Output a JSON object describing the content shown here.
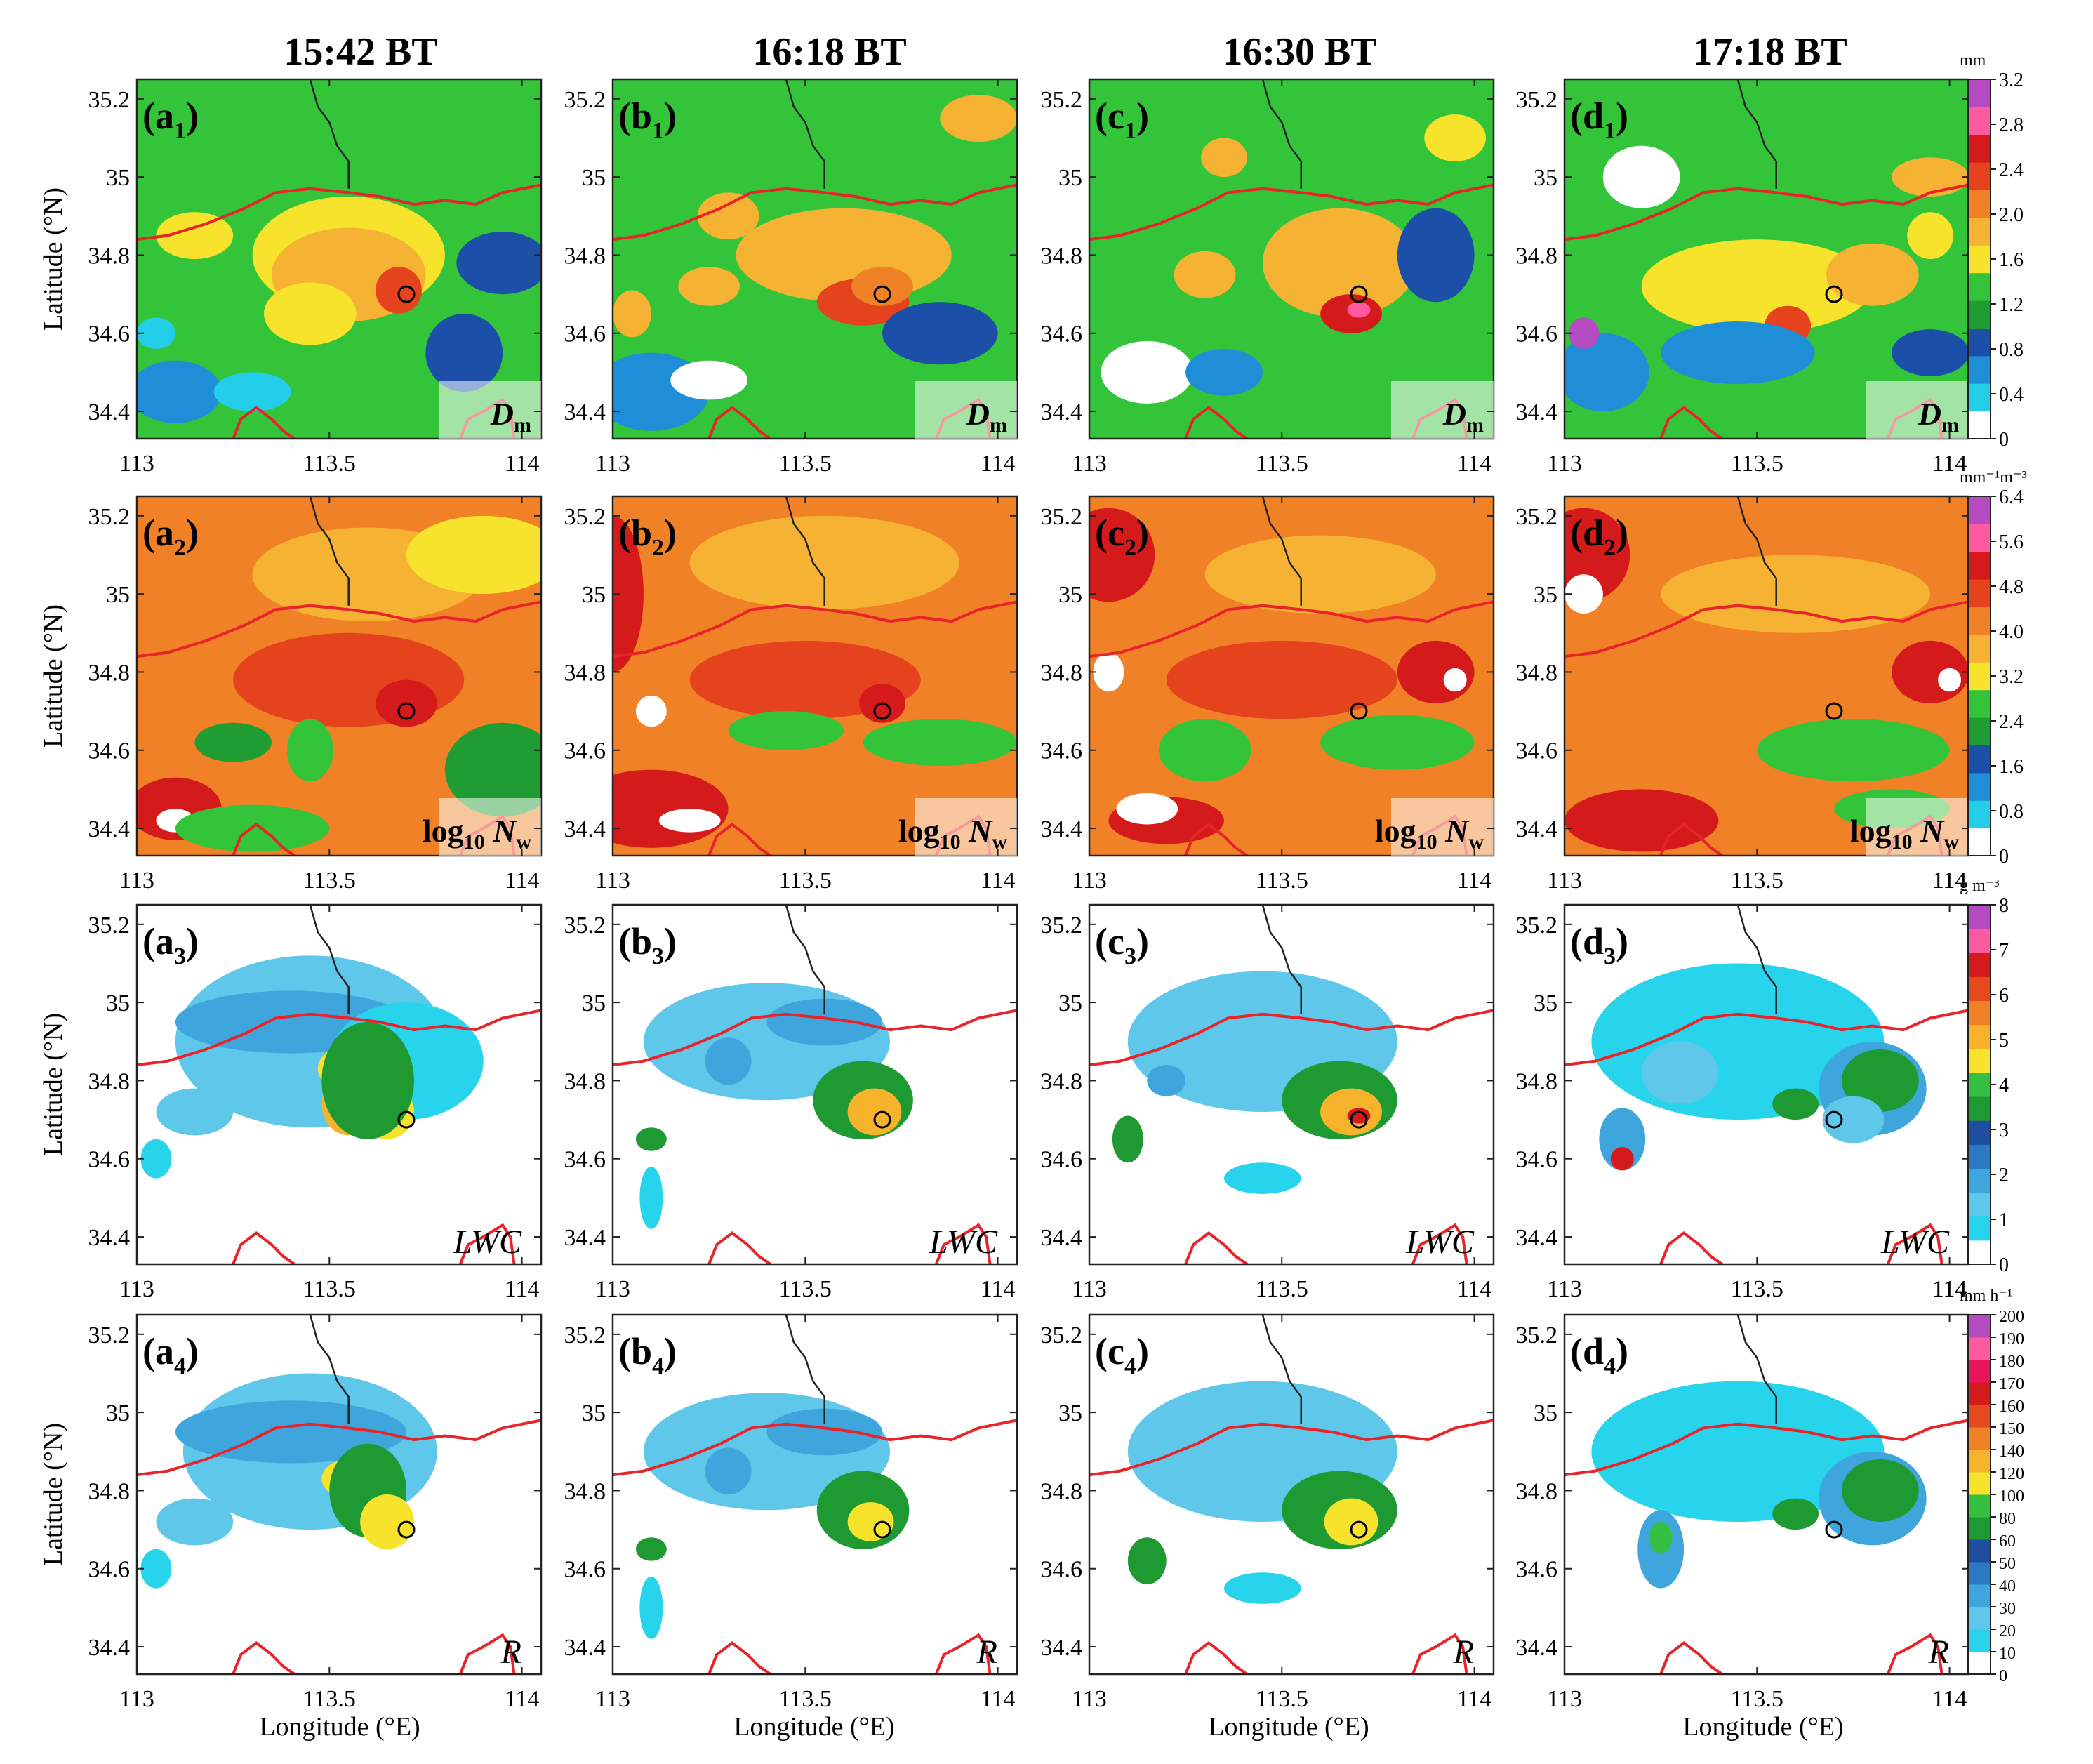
{
  "columns": [
    {
      "time": "15:42 BT",
      "letter": "a"
    },
    {
      "time": "16:18 BT",
      "letter": "b"
    },
    {
      "time": "16:30 BT",
      "letter": "c"
    },
    {
      "time": "17:18 BT",
      "letter": "d"
    }
  ],
  "rows": [
    {
      "variable": "Dm",
      "label_main": "D",
      "label_sub": "m",
      "label_italic": true,
      "label_box": true,
      "units": "mm",
      "colorbar_ticks": [
        "0",
        "0.4",
        "0.8",
        "1.2",
        "1.6",
        "2.0",
        "2.4",
        "2.8",
        "3.2"
      ],
      "colors": [
        "#ffffff",
        "#23cfe8",
        "#1e8fd6",
        "#1b4fa8",
        "#1f9c32",
        "#33c43a",
        "#f7e22c",
        "#f5b233",
        "#f08126",
        "#e5431e",
        "#d41a1a",
        "#ff5aa0",
        "#b44bc0"
      ]
    },
    {
      "variable": "log10Nw",
      "label_main": "log",
      "label_sub": "10",
      "label_tail": "N",
      "label_tail_sub": "w",
      "label_box": true,
      "units": "mm⁻¹m⁻³",
      "colorbar_ticks": [
        "0",
        "0.8",
        "1.6",
        "2.4",
        "3.2",
        "4.0",
        "4.8",
        "5.6",
        "6.4"
      ],
      "colors": [
        "#ffffff",
        "#23cfe8",
        "#1e8fd6",
        "#1b4fa8",
        "#1f9c32",
        "#33c43a",
        "#f7e22c",
        "#f5b233",
        "#f08126",
        "#e5431e",
        "#d41a1a",
        "#ff5aa0",
        "#b44bc0"
      ]
    },
    {
      "variable": "LWC",
      "label_main": "LWC",
      "label_italic": true,
      "label_box": false,
      "units": "g m⁻³",
      "colorbar_ticks": [
        "0",
        "1",
        "2",
        "3",
        "4",
        "5",
        "6",
        "7",
        "8"
      ],
      "colors": [
        "#ffffff",
        "#28d4ec",
        "#5ec7ea",
        "#3fa5dd",
        "#2a78c6",
        "#1f4e9e",
        "#1f9a32",
        "#35c041",
        "#f7e22c",
        "#f7b32c",
        "#f08126",
        "#e54a1e",
        "#d41a1a",
        "#ff5aa0",
        "#b44bc0"
      ]
    },
    {
      "variable": "R",
      "label_main": "R",
      "label_italic": true,
      "label_box": false,
      "units": "mm h⁻¹",
      "colorbar_ticks": [
        "0",
        "10",
        "20",
        "30",
        "40",
        "50",
        "60",
        "80",
        "100",
        "120",
        "140",
        "150",
        "160",
        "170",
        "180",
        "190",
        "200"
      ],
      "colors": [
        "#ffffff",
        "#28d4ec",
        "#5ec7ea",
        "#3fa5dd",
        "#2a78c6",
        "#1f4e9e",
        "#1f9a32",
        "#35c041",
        "#f7e22c",
        "#f7b32c",
        "#f08126",
        "#e54a1e",
        "#d41a1a",
        "#e8155a",
        "#ff5aa0",
        "#b44bc0"
      ]
    }
  ],
  "axes": {
    "lon_ticks": [
      "113",
      "113.5",
      "114"
    ],
    "lat_ticks": [
      "35.2",
      "35",
      "34.8",
      "34.6",
      "34.4"
    ],
    "lon_range": [
      113.0,
      114.05
    ],
    "lat_range": [
      34.33,
      35.25
    ],
    "xlabel": "Longitude (°E)",
    "ylabel": "Latitude (°N)"
  },
  "marker": {
    "lon": 113.7,
    "lat": 34.7
  },
  "panels": [
    [
      {
        "bg": 5,
        "blobs": [
          [
            113.55,
            34.8,
            0.25,
            0.15,
            6
          ],
          [
            113.55,
            34.75,
            0.2,
            0.12,
            7
          ],
          [
            113.68,
            34.71,
            0.06,
            0.06,
            9
          ],
          [
            113.45,
            34.65,
            0.12,
            0.08,
            6
          ],
          [
            113.15,
            34.85,
            0.1,
            0.06,
            6
          ],
          [
            113.95,
            34.78,
            0.12,
            0.08,
            3
          ],
          [
            113.1,
            34.45,
            0.12,
            0.08,
            2
          ],
          [
            113.3,
            34.45,
            0.1,
            0.05,
            1
          ],
          [
            113.85,
            34.55,
            0.1,
            0.1,
            3
          ],
          [
            113.05,
            34.6,
            0.05,
            0.04,
            1
          ]
        ]
      },
      {
        "bg": 8,
        "blobs": [
          [
            113.6,
            35.05,
            0.3,
            0.12,
            7
          ],
          [
            113.9,
            35.1,
            0.2,
            0.1,
            6
          ],
          [
            113.55,
            34.78,
            0.3,
            0.12,
            9
          ],
          [
            113.7,
            34.72,
            0.08,
            0.06,
            10
          ],
          [
            113.45,
            34.6,
            0.06,
            0.08,
            5
          ],
          [
            113.25,
            34.62,
            0.1,
            0.05,
            4
          ],
          [
            113.1,
            34.45,
            0.12,
            0.08,
            10
          ],
          [
            113.1,
            34.42,
            0.05,
            0.03,
            0
          ],
          [
            113.3,
            34.4,
            0.2,
            0.06,
            5
          ],
          [
            113.95,
            34.55,
            0.15,
            0.12,
            4
          ]
        ]
      },
      {
        "bg": 0,
        "blobs": [
          [
            113.45,
            34.9,
            0.35,
            0.22,
            2
          ],
          [
            113.4,
            34.95,
            0.3,
            0.08,
            3
          ],
          [
            113.7,
            34.85,
            0.2,
            0.15,
            1
          ],
          [
            113.55,
            34.83,
            0.08,
            0.06,
            8
          ],
          [
            113.55,
            34.74,
            0.07,
            0.08,
            9
          ],
          [
            113.65,
            34.72,
            0.07,
            0.07,
            8
          ],
          [
            113.6,
            34.8,
            0.12,
            0.15,
            6
          ],
          [
            113.15,
            34.72,
            0.1,
            0.06,
            2
          ],
          [
            113.05,
            34.6,
            0.04,
            0.05,
            1
          ]
        ]
      },
      {
        "bg": 0,
        "blobs": [
          [
            113.45,
            34.9,
            0.33,
            0.2,
            2
          ],
          [
            113.4,
            34.95,
            0.3,
            0.08,
            3
          ],
          [
            113.55,
            34.83,
            0.07,
            0.05,
            8
          ],
          [
            113.6,
            34.8,
            0.1,
            0.12,
            6
          ],
          [
            113.65,
            34.72,
            0.07,
            0.07,
            8
          ],
          [
            113.15,
            34.72,
            0.1,
            0.06,
            2
          ],
          [
            113.05,
            34.6,
            0.04,
            0.05,
            1
          ]
        ]
      }
    ],
    [
      {
        "bg": 5,
        "blobs": [
          [
            113.6,
            34.8,
            0.28,
            0.12,
            7
          ],
          [
            113.65,
            34.68,
            0.12,
            0.06,
            9
          ],
          [
            113.7,
            34.72,
            0.08,
            0.05,
            8
          ],
          [
            113.25,
            34.72,
            0.08,
            0.05,
            7
          ],
          [
            113.3,
            34.9,
            0.08,
            0.06,
            7
          ],
          [
            113.1,
            34.45,
            0.15,
            0.1,
            2
          ],
          [
            113.25,
            34.48,
            0.1,
            0.05,
            0
          ],
          [
            113.85,
            34.6,
            0.15,
            0.08,
            3
          ],
          [
            113.05,
            34.65,
            0.05,
            0.06,
            7
          ],
          [
            113.95,
            35.15,
            0.1,
            0.06,
            7
          ]
        ]
      },
      {
        "bg": 8,
        "blobs": [
          [
            113.55,
            35.08,
            0.35,
            0.12,
            7
          ],
          [
            113.5,
            34.78,
            0.3,
            0.1,
            9
          ],
          [
            113.7,
            34.72,
            0.06,
            0.05,
            10
          ],
          [
            113.45,
            34.65,
            0.15,
            0.05,
            5
          ],
          [
            113.85,
            34.62,
            0.2,
            0.06,
            5
          ],
          [
            113.1,
            34.45,
            0.2,
            0.1,
            10
          ],
          [
            113.2,
            34.42,
            0.08,
            0.03,
            0
          ],
          [
            113.1,
            34.7,
            0.04,
            0.04,
            0
          ],
          [
            113.0,
            35.0,
            0.08,
            0.2,
            10
          ]
        ]
      },
      {
        "bg": 0,
        "blobs": [
          [
            113.4,
            34.9,
            0.32,
            0.15,
            2
          ],
          [
            113.55,
            34.95,
            0.15,
            0.06,
            3
          ],
          [
            113.65,
            34.75,
            0.13,
            0.1,
            6
          ],
          [
            113.68,
            34.72,
            0.07,
            0.06,
            9
          ],
          [
            113.3,
            34.85,
            0.06,
            0.06,
            3
          ],
          [
            113.1,
            34.65,
            0.04,
            0.03,
            6
          ],
          [
            113.1,
            34.5,
            0.03,
            0.08,
            1
          ]
        ]
      },
      {
        "bg": 0,
        "blobs": [
          [
            113.4,
            34.9,
            0.32,
            0.15,
            2
          ],
          [
            113.55,
            34.95,
            0.15,
            0.06,
            3
          ],
          [
            113.65,
            34.75,
            0.12,
            0.1,
            6
          ],
          [
            113.67,
            34.72,
            0.06,
            0.05,
            8
          ],
          [
            113.3,
            34.85,
            0.06,
            0.06,
            3
          ],
          [
            113.1,
            34.65,
            0.04,
            0.03,
            6
          ],
          [
            113.1,
            34.5,
            0.03,
            0.08,
            1
          ]
        ]
      }
    ],
    [
      {
        "bg": 5,
        "blobs": [
          [
            113.65,
            34.78,
            0.2,
            0.14,
            7
          ],
          [
            113.68,
            34.65,
            0.08,
            0.05,
            10
          ],
          [
            113.7,
            34.66,
            0.03,
            0.02,
            11
          ],
          [
            113.3,
            34.75,
            0.08,
            0.06,
            7
          ],
          [
            113.35,
            35.05,
            0.06,
            0.05,
            7
          ],
          [
            113.15,
            34.5,
            0.12,
            0.08,
            0
          ],
          [
            113.35,
            34.5,
            0.1,
            0.06,
            2
          ],
          [
            113.9,
            34.8,
            0.1,
            0.12,
            3
          ],
          [
            113.95,
            35.1,
            0.08,
            0.06,
            6
          ]
        ]
      },
      {
        "bg": 8,
        "blobs": [
          [
            113.05,
            35.1,
            0.12,
            0.12,
            10
          ],
          [
            113.6,
            35.05,
            0.3,
            0.1,
            7
          ],
          [
            113.5,
            34.78,
            0.3,
            0.1,
            9
          ],
          [
            113.9,
            34.8,
            0.1,
            0.08,
            10
          ],
          [
            113.95,
            34.78,
            0.03,
            0.03,
            0
          ],
          [
            113.3,
            34.6,
            0.12,
            0.08,
            5
          ],
          [
            113.8,
            34.62,
            0.2,
            0.07,
            5
          ],
          [
            113.2,
            34.42,
            0.15,
            0.06,
            10
          ],
          [
            113.15,
            34.45,
            0.08,
            0.04,
            0
          ],
          [
            113.05,
            34.8,
            0.04,
            0.05,
            0
          ]
        ]
      },
      {
        "bg": 0,
        "blobs": [
          [
            113.45,
            34.9,
            0.35,
            0.18,
            2
          ],
          [
            113.65,
            34.75,
            0.15,
            0.1,
            6
          ],
          [
            113.68,
            34.72,
            0.08,
            0.06,
            9
          ],
          [
            113.7,
            34.71,
            0.03,
            0.02,
            12
          ],
          [
            113.2,
            34.8,
            0.05,
            0.04,
            3
          ],
          [
            113.1,
            34.65,
            0.04,
            0.06,
            6
          ],
          [
            113.45,
            34.55,
            0.1,
            0.04,
            1
          ]
        ]
      },
      {
        "bg": 0,
        "blobs": [
          [
            113.45,
            34.9,
            0.35,
            0.18,
            2
          ],
          [
            113.65,
            34.75,
            0.15,
            0.1,
            6
          ],
          [
            113.68,
            34.72,
            0.07,
            0.06,
            8
          ],
          [
            113.15,
            34.62,
            0.05,
            0.06,
            6
          ],
          [
            113.45,
            34.55,
            0.1,
            0.04,
            1
          ]
        ]
      }
    ],
    [
      {
        "bg": 5,
        "blobs": [
          [
            113.5,
            34.72,
            0.3,
            0.12,
            6
          ],
          [
            113.58,
            34.62,
            0.06,
            0.05,
            9
          ],
          [
            113.8,
            34.75,
            0.12,
            0.08,
            7
          ],
          [
            113.95,
            34.85,
            0.06,
            0.06,
            6
          ],
          [
            113.45,
            34.55,
            0.2,
            0.08,
            2
          ],
          [
            113.1,
            34.5,
            0.12,
            0.1,
            2
          ],
          [
            113.05,
            34.6,
            0.04,
            0.04,
            12
          ],
          [
            113.2,
            35.0,
            0.1,
            0.08,
            0
          ],
          [
            113.95,
            34.55,
            0.1,
            0.06,
            3
          ],
          [
            113.95,
            35.0,
            0.1,
            0.05,
            7
          ]
        ]
      },
      {
        "bg": 8,
        "blobs": [
          [
            113.05,
            35.1,
            0.12,
            0.12,
            10
          ],
          [
            113.6,
            35.0,
            0.35,
            0.1,
            7
          ],
          [
            113.5,
            34.72,
            0.35,
            0.1,
            8
          ],
          [
            113.95,
            34.8,
            0.1,
            0.08,
            10
          ],
          [
            114.0,
            34.78,
            0.03,
            0.03,
            0
          ],
          [
            113.75,
            34.6,
            0.25,
            0.08,
            5
          ],
          [
            113.2,
            34.42,
            0.2,
            0.08,
            10
          ],
          [
            113.05,
            35.0,
            0.05,
            0.05,
            0
          ],
          [
            113.85,
            34.45,
            0.15,
            0.05,
            5
          ]
        ]
      },
      {
        "bg": 0,
        "blobs": [
          [
            113.45,
            34.9,
            0.38,
            0.2,
            1
          ],
          [
            113.3,
            34.82,
            0.1,
            0.08,
            2
          ],
          [
            113.8,
            34.78,
            0.14,
            0.12,
            3
          ],
          [
            113.82,
            34.8,
            0.1,
            0.08,
            6
          ],
          [
            113.15,
            34.65,
            0.06,
            0.08,
            3
          ],
          [
            113.15,
            34.6,
            0.03,
            0.03,
            12
          ],
          [
            113.6,
            34.74,
            0.06,
            0.04,
            6
          ],
          [
            113.75,
            34.7,
            0.08,
            0.06,
            2
          ]
        ]
      },
      {
        "bg": 0,
        "blobs": [
          [
            113.45,
            34.9,
            0.38,
            0.18,
            1
          ],
          [
            113.8,
            34.78,
            0.14,
            0.12,
            3
          ],
          [
            113.82,
            34.8,
            0.1,
            0.08,
            6
          ],
          [
            113.25,
            34.65,
            0.06,
            0.1,
            3
          ],
          [
            113.25,
            34.68,
            0.03,
            0.04,
            7
          ],
          [
            113.6,
            34.74,
            0.06,
            0.04,
            6
          ]
        ]
      }
    ]
  ]
}
